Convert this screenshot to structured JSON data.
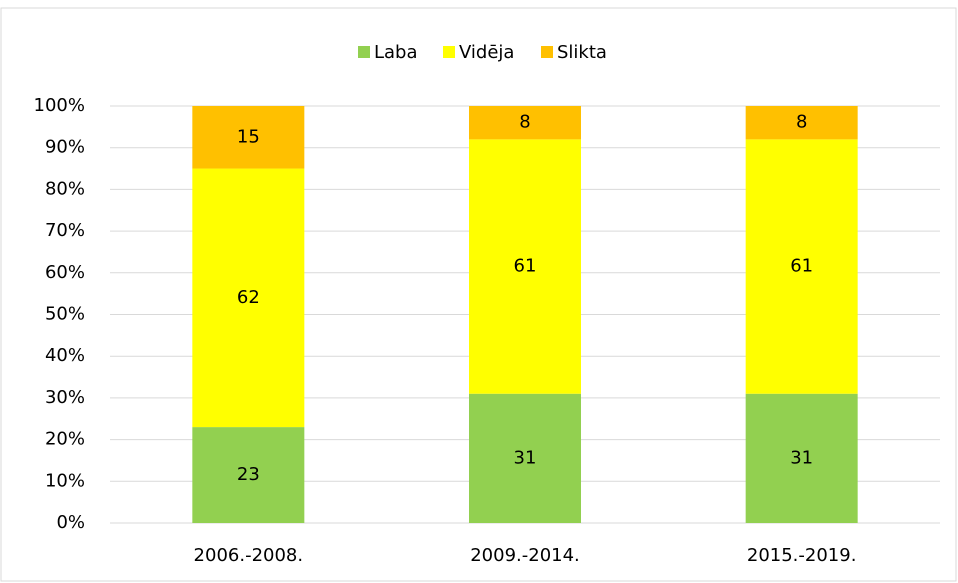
{
  "chart_data": {
    "type": "stacked_bar",
    "categories": [
      "2006.-2008.",
      "2009.-2014.",
      "2015.-2019."
    ],
    "series": [
      {
        "name": "Laba",
        "color": "#92d050",
        "values": [
          23,
          31,
          31
        ]
      },
      {
        "name": "Vidēja",
        "color": "#ffff00",
        "values": [
          62,
          61,
          61
        ]
      },
      {
        "name": "Slikta",
        "color": "#ffc000",
        "values": [
          15,
          8,
          8
        ]
      }
    ],
    "ylim": [
      0,
      100
    ],
    "yticks": [
      {
        "value": 0,
        "label": "0%"
      },
      {
        "value": 10,
        "label": "10%"
      },
      {
        "value": 20,
        "label": "20%"
      },
      {
        "value": 30,
        "label": "30%"
      },
      {
        "value": 40,
        "label": "40%"
      },
      {
        "value": 50,
        "label": "50%"
      },
      {
        "value": 60,
        "label": "60%"
      },
      {
        "value": 70,
        "label": "70%"
      },
      {
        "value": 80,
        "label": "80%"
      },
      {
        "value": 90,
        "label": "90%"
      },
      {
        "value": 100,
        "label": "100%"
      }
    ],
    "grid": true,
    "legend": "top"
  }
}
